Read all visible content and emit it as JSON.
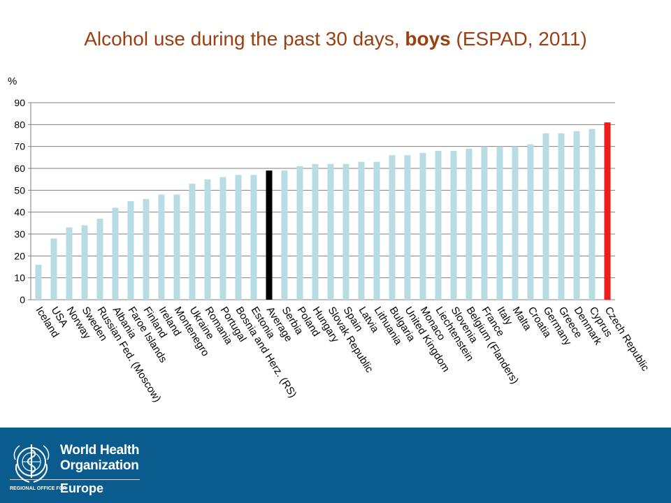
{
  "title": {
    "prefix": "Alcohol use during the past 30 days, ",
    "bold": "boys",
    "suffix": " (ESPAD, 2011)"
  },
  "footer": {
    "org_line_1": "World Health",
    "org_line_2": "Organization",
    "regional_office": "REGIONAL OFFICE FOR",
    "region": "Europe",
    "background_color": "#0b5c8e",
    "logo_icon": "who-emblem-icon"
  },
  "chart_data": {
    "type": "bar",
    "title": "Alcohol use during the past 30 days, boys (ESPAD, 2011)",
    "xlabel": "",
    "ylabel": "%",
    "ylim": [
      0,
      90
    ],
    "yticks": [
      0,
      10,
      20,
      30,
      40,
      50,
      60,
      70,
      80,
      90
    ],
    "grid": true,
    "legend": "none",
    "colors": {
      "default": "#b7dde3",
      "average": "#000000",
      "highlight": "#ee1c1c"
    },
    "categories": [
      "Iceland",
      "USA",
      "Norway",
      "Sweden",
      "Russian Fed. (Moscow)",
      "Albania",
      "Faroe Islands",
      "Finland",
      "Ireland",
      "Montenegro",
      "Ukraine",
      "Romania",
      "Portugal",
      "Bosnia and Herz. (RS)",
      "Estonia",
      "Average",
      "Serbia",
      "Poland",
      "Hungary",
      "Slovak Republic",
      "Spain",
      "Latvia",
      "Lithuania",
      "Bulgaria",
      "United Kingdom",
      "Monaco",
      "Liechtenstein",
      "Slovenia",
      "Belgium (Flanders)",
      "France",
      "Italy",
      "Malta",
      "Croatia",
      "Germany",
      "Greece",
      "Denmark",
      "Cyprus",
      "Czech Republic"
    ],
    "values": [
      16,
      28,
      33,
      34,
      37,
      42,
      45,
      46,
      48,
      48,
      53,
      55,
      56,
      57,
      57,
      59,
      59,
      61,
      62,
      62,
      62,
      63,
      63,
      66,
      66,
      67,
      68,
      68,
      69,
      70,
      70,
      70,
      71,
      76,
      76,
      77,
      78,
      81
    ],
    "bar_colors": [
      "default",
      "default",
      "default",
      "default",
      "default",
      "default",
      "default",
      "default",
      "default",
      "default",
      "default",
      "default",
      "default",
      "default",
      "default",
      "average",
      "default",
      "default",
      "default",
      "default",
      "default",
      "default",
      "default",
      "default",
      "default",
      "default",
      "default",
      "default",
      "default",
      "default",
      "default",
      "default",
      "default",
      "default",
      "default",
      "default",
      "default",
      "highlight"
    ]
  }
}
